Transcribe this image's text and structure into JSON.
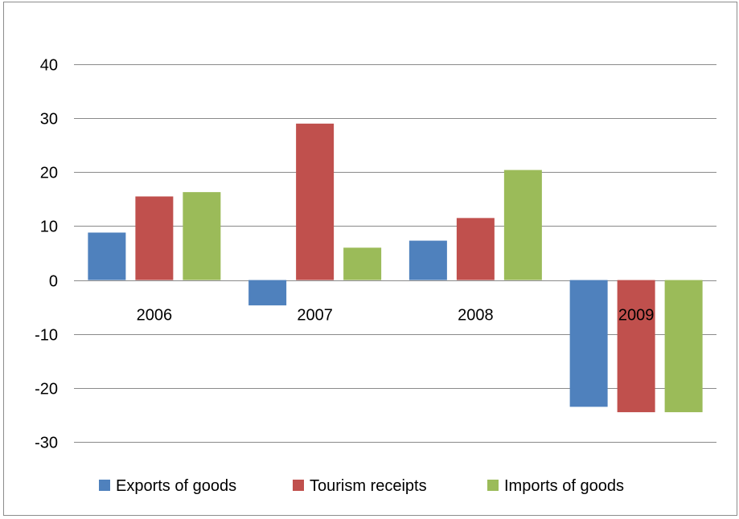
{
  "chart_data": {
    "type": "bar",
    "title": "",
    "xlabel": "",
    "ylabel": "",
    "categories": [
      "2006",
      "2007",
      "2008",
      "2009"
    ],
    "ylim": [
      -30,
      40
    ],
    "yticks": [
      40,
      30,
      20,
      10,
      0,
      -10,
      -20,
      -30
    ],
    "grid": true,
    "legend_position": "bottom",
    "series": [
      {
        "name": "Exports of goods",
        "color": "#4f81bd",
        "values": [
          8.8,
          -4.7,
          7.3,
          -23.5
        ]
      },
      {
        "name": "Tourism receipts",
        "color": "#c0504d",
        "values": [
          15.5,
          29.0,
          11.5,
          -24.5
        ]
      },
      {
        "name": "Imports of goods",
        "color": "#9bbb59",
        "values": [
          16.3,
          6.0,
          20.4,
          -24.5
        ]
      }
    ]
  }
}
